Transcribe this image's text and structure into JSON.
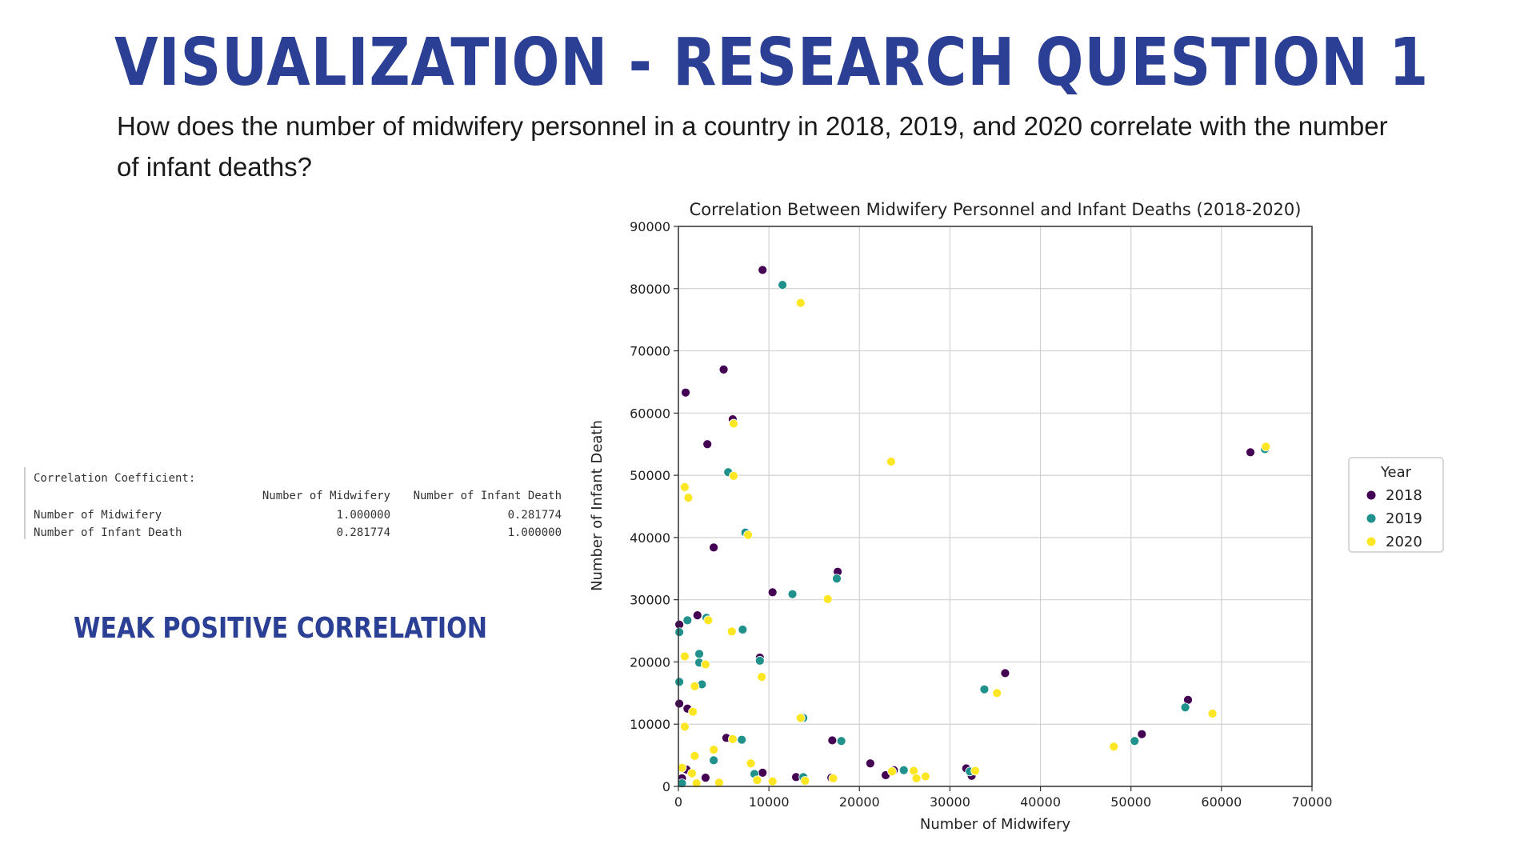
{
  "slide": {
    "title": "VISUALIZATION - RESEARCH QUESTION 1",
    "question": "How does the number of midwifery personnel in a country in 2018, 2019, and 2020 correlate with the number of infant deaths?",
    "conclusion": "WEAK POSITIVE CORRELATION"
  },
  "correlation_table": {
    "caption": "Correlation Coefficient:",
    "columns": [
      "Number of Midwifery",
      "Number of Infant Death"
    ],
    "rows": [
      {
        "label": "Number of Midwifery",
        "values": [
          "1.000000",
          "0.281774"
        ]
      },
      {
        "label": "Number of Infant Death",
        "values": [
          "0.281774",
          "1.000000"
        ]
      }
    ]
  },
  "colors": {
    "title": "#2b3f94",
    "2018": "#440154",
    "2019": "#21918c",
    "2020": "#fde725"
  },
  "chart_data": {
    "type": "scatter",
    "title": "Correlation Between Midwifery Personnel and Infant Deaths (2018-2020)",
    "xlabel": "Number of Midwifery",
    "ylabel": "Number of Infant Death",
    "xlim": [
      0,
      70000
    ],
    "ylim": [
      0,
      90000
    ],
    "xticks": [
      "0",
      "10000",
      "20000",
      "30000",
      "40000",
      "50000",
      "60000",
      "70000"
    ],
    "yticks": [
      "0",
      "10000",
      "20000",
      "30000",
      "40000",
      "50000",
      "60000",
      "70000",
      "80000",
      "90000"
    ],
    "grid": true,
    "legend": {
      "title": "Year",
      "position": "right"
    },
    "series": [
      {
        "name": "2018",
        "color": "#440154",
        "points": [
          [
            9300,
            83000
          ],
          [
            5000,
            67000
          ],
          [
            800,
            63300
          ],
          [
            6000,
            59000
          ],
          [
            3200,
            55000
          ],
          [
            3900,
            38400
          ],
          [
            17600,
            34500
          ],
          [
            10400,
            31200
          ],
          [
            2100,
            27500
          ],
          [
            100,
            26000
          ],
          [
            9000,
            20700
          ],
          [
            36100,
            18200
          ],
          [
            100,
            13300
          ],
          [
            56300,
            13900
          ],
          [
            1000,
            12500
          ],
          [
            51200,
            8400
          ],
          [
            17000,
            7400
          ],
          [
            5300,
            7800
          ],
          [
            21200,
            3700
          ],
          [
            900,
            2700
          ],
          [
            23800,
            2600
          ],
          [
            31800,
            2900
          ],
          [
            9300,
            2200
          ],
          [
            13000,
            1500
          ],
          [
            22900,
            1800
          ],
          [
            16900,
            1400
          ],
          [
            32400,
            1700
          ],
          [
            3000,
            1400
          ],
          [
            400,
            1300
          ],
          [
            63200,
            53700
          ]
        ]
      },
      {
        "name": "2019",
        "color": "#21918c",
        "points": [
          [
            11500,
            80600
          ],
          [
            5500,
            50500
          ],
          [
            7400,
            40800
          ],
          [
            17500,
            33400
          ],
          [
            12600,
            30900
          ],
          [
            3100,
            27100
          ],
          [
            1000,
            26700
          ],
          [
            100,
            24800
          ],
          [
            7100,
            25200
          ],
          [
            2300,
            21300
          ],
          [
            9000,
            20200
          ],
          [
            2600,
            16400
          ],
          [
            100,
            16800
          ],
          [
            33800,
            15600
          ],
          [
            56000,
            12700
          ],
          [
            13800,
            11000
          ],
          [
            50400,
            7300
          ],
          [
            7000,
            7500
          ],
          [
            18000,
            7300
          ],
          [
            3900,
            4200
          ],
          [
            24900,
            2600
          ],
          [
            32200,
            2400
          ],
          [
            8400,
            2000
          ],
          [
            13800,
            1500
          ],
          [
            400,
            500
          ],
          [
            64800,
            54200
          ],
          [
            2300,
            19900
          ]
        ]
      },
      {
        "name": "2020",
        "color": "#fde725",
        "points": [
          [
            13500,
            77700
          ],
          [
            6100,
            58300
          ],
          [
            23500,
            52200
          ],
          [
            6100,
            49900
          ],
          [
            700,
            48100
          ],
          [
            1100,
            46400
          ],
          [
            7700,
            40400
          ],
          [
            16500,
            30100
          ],
          [
            3300,
            26700
          ],
          [
            5900,
            24900
          ],
          [
            700,
            20900
          ],
          [
            3000,
            19600
          ],
          [
            9200,
            17600
          ],
          [
            35200,
            15000
          ],
          [
            59000,
            11700
          ],
          [
            13500,
            11000
          ],
          [
            48100,
            6400
          ],
          [
            6000,
            7600
          ],
          [
            3900,
            5900
          ],
          [
            1800,
            4900
          ],
          [
            8000,
            3700
          ],
          [
            23600,
            2400
          ],
          [
            26000,
            2500
          ],
          [
            32800,
            2500
          ],
          [
            27300,
            1600
          ],
          [
            17100,
            1300
          ],
          [
            10400,
            800
          ],
          [
            400,
            3000
          ],
          [
            1500,
            2100
          ],
          [
            14000,
            900
          ],
          [
            64900,
            54600
          ],
          [
            1600,
            12000
          ],
          [
            1800,
            16100
          ],
          [
            700,
            9600
          ],
          [
            26300,
            1300
          ],
          [
            4500,
            600
          ],
          [
            2000,
            500
          ],
          [
            8700,
            1000
          ]
        ]
      }
    ]
  }
}
